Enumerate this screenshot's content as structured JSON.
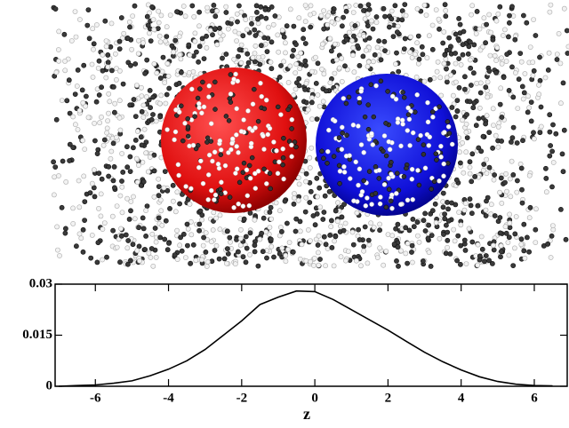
{
  "chart_data": {
    "type": "line",
    "x_label": "z",
    "x": [
      -7,
      -6.5,
      -6,
      -5.5,
      -5,
      -4.5,
      -4,
      -3.5,
      -3,
      -2.5,
      -2,
      -1.5,
      -1,
      -0.5,
      0,
      0.5,
      1,
      1.5,
      2,
      2.5,
      3,
      3.5,
      4,
      4.5,
      5,
      5.5,
      6,
      6.5
    ],
    "series": [
      {
        "color": "#000000",
        "values": [
          0,
          0.0002,
          0.0004,
          0.0009,
          0.0016,
          0.0031,
          0.005,
          0.0075,
          0.0108,
          0.015,
          0.0192,
          0.024,
          0.0262,
          0.028,
          0.0278,
          0.0255,
          0.0225,
          0.0195,
          0.0165,
          0.0132,
          0.01,
          0.0072,
          0.0048,
          0.0028,
          0.0014,
          0.0006,
          0.0002,
          0.0001
        ]
      }
    ],
    "xlim": [
      -7.1,
      6.9
    ],
    "xticks": [
      -6,
      -4,
      -2,
      0,
      2,
      4,
      6
    ],
    "ylim": [
      0,
      0.03
    ],
    "yticks": [
      0,
      0.015,
      0.03
    ]
  }
}
